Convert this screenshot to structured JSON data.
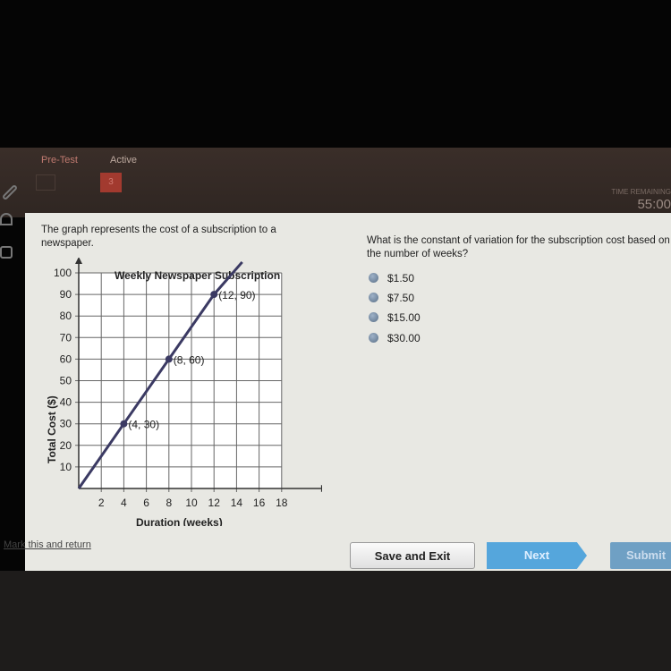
{
  "header": {
    "tabs": [
      "Pre-Test",
      "Active"
    ],
    "question_number": "3",
    "timer_label": "TIME REMAINING",
    "timer": "55:00"
  },
  "prompt": "The graph represents the cost of a subscription to a newspaper.",
  "question": "What is the constant of variation for the subscription cost based on the number of weeks?",
  "options": [
    "$1.50",
    "$7.50",
    "$15.00",
    "$30.00"
  ],
  "chart_data": {
    "type": "line",
    "title": "Weekly Newspaper Subscription",
    "xlabel": "Duration (weeks)",
    "ylabel": "Total Cost ($)",
    "xlim": [
      0,
      18
    ],
    "ylim": [
      0,
      100
    ],
    "xticks": [
      2,
      4,
      6,
      8,
      10,
      12,
      14,
      16,
      18
    ],
    "yticks": [
      10,
      20,
      30,
      40,
      50,
      60,
      70,
      80,
      90,
      100
    ],
    "grid": true,
    "x": [
      0,
      4,
      8,
      12,
      14.5
    ],
    "y": [
      0,
      30,
      60,
      90,
      108
    ],
    "points": [
      {
        "x": 4,
        "y": 30,
        "label": "(4, 30)"
      },
      {
        "x": 8,
        "y": 60,
        "label": "(8, 60)"
      },
      {
        "x": 12,
        "y": 90,
        "label": "(12, 90)"
      }
    ],
    "line_color": "#3b3a63"
  },
  "footer": {
    "mark": "Mark this and return",
    "save": "Save and Exit",
    "next": "Next",
    "submit": "Submit"
  }
}
